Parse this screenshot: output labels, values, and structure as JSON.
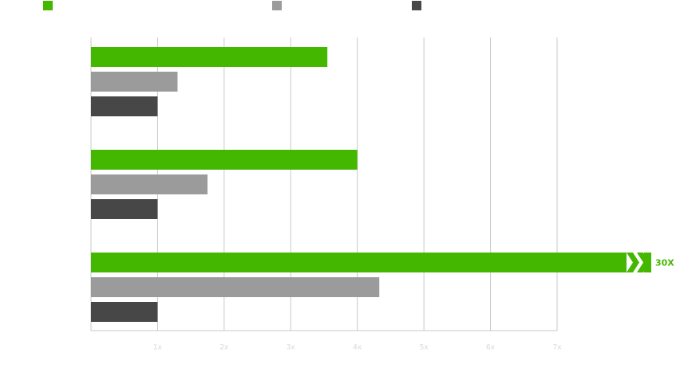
{
  "chart_data": {
    "type": "bar",
    "orientation": "horizontal",
    "categories": [
      null,
      null,
      null
    ],
    "series": [
      {
        "color": "#44b700",
        "values": [
          3.55,
          4.0,
          30
        ],
        "value_labels": [
          null,
          null,
          "30X"
        ]
      },
      {
        "color": "#9b9b9b",
        "values": [
          1.3,
          1.75,
          4.33
        ]
      },
      {
        "color": "#474747",
        "values": [
          1,
          1,
          1
        ]
      }
    ],
    "xlim": [
      0,
      7
    ],
    "xticks": [
      {
        "value": 1,
        "label": "1x"
      },
      {
        "value": 2,
        "label": "2x"
      },
      {
        "value": 3,
        "label": "3x"
      },
      {
        "value": 4,
        "label": "4x"
      },
      {
        "value": 5,
        "label": "5x"
      },
      {
        "value": 6,
        "label": "6x"
      },
      {
        "value": 7,
        "label": "7x"
      }
    ],
    "grid": true,
    "legend": "top"
  }
}
